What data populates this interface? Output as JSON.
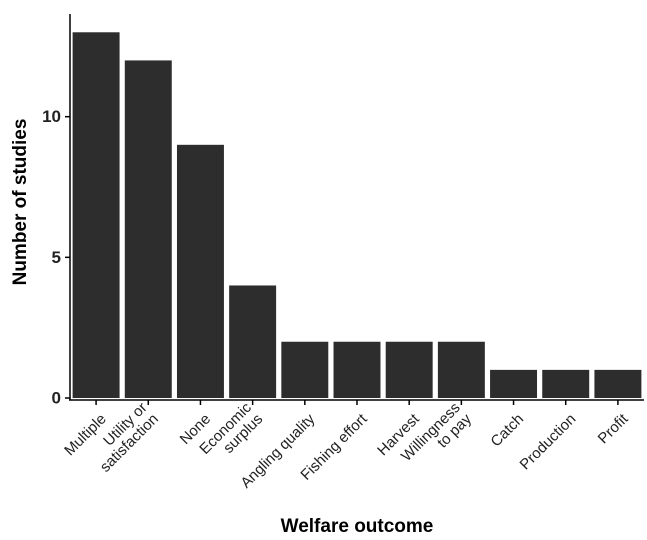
{
  "chart_data": {
    "type": "bar",
    "title": "",
    "xlabel": "Welfare outcome",
    "ylabel": "Number of studies",
    "categories": [
      "Multiple",
      "Utility or\nsatisfaction",
      "None",
      "Economic\nsurplus",
      "Angling quality",
      "Fishing effort",
      "Harvest",
      "Willingness\nto pay",
      "Catch",
      "Production",
      "Profit"
    ],
    "values": [
      13,
      12,
      9,
      4,
      2,
      2,
      2,
      2,
      1,
      1,
      1
    ],
    "ylim": [
      0,
      13.65
    ],
    "yticks": [
      0,
      5,
      10
    ],
    "grid": false,
    "bar_color": "#2d2d2d"
  }
}
